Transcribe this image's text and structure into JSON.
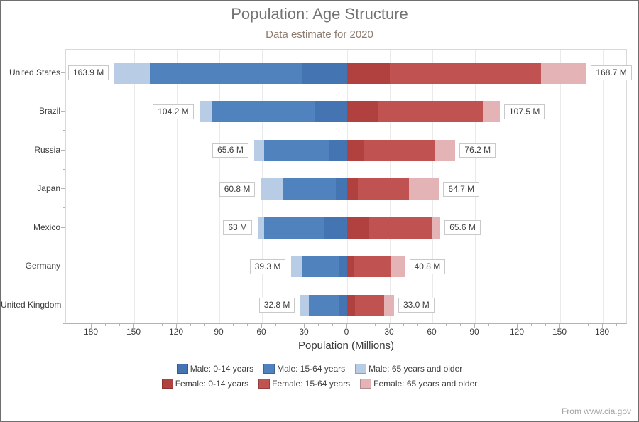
{
  "header": {
    "title": "Population: Age Structure",
    "subtitle": "Data estimate for 2020"
  },
  "footer": {
    "attribution": "From www.cia.gov"
  },
  "chart_data": {
    "type": "bar",
    "variant": "horizontal-diverging-stacked",
    "title": "Population: Age Structure",
    "subtitle": "Data estimate for 2020",
    "xlabel": "Population (Millions)",
    "unit": "Millions",
    "grid": true,
    "legend_position": "bottom",
    "x_tick_labels": [
      "180",
      "150",
      "120",
      "90",
      "60",
      "30",
      "0",
      "30",
      "60",
      "90",
      "120",
      "150",
      "180"
    ],
    "x_major_step": 30,
    "x_minor_step": 10,
    "x_range_abs": 197,
    "categories": [
      "United States",
      "Brazil",
      "Russia",
      "Japan",
      "Mexico",
      "Germany",
      "United Kingdom"
    ],
    "series": [
      {
        "name": "Male: 0-14 years",
        "side": "left",
        "color": "#4474b1",
        "values": [
          31.4,
          22.4,
          12.3,
          8.0,
          15.8,
          5.3,
          6.0
        ]
      },
      {
        "name": "Male: 15-64 years",
        "side": "left",
        "color": "#5083bd",
        "values": [
          107.8,
          73.0,
          46.2,
          36.9,
          42.6,
          26.1,
          20.9
        ]
      },
      {
        "name": "Male: 65 years and older",
        "side": "left",
        "color": "#b8cde5",
        "values": [
          24.7,
          8.8,
          7.1,
          15.9,
          4.6,
          7.9,
          5.9
        ]
      },
      {
        "name": "Female: 0-14 years",
        "side": "right",
        "color": "#b0413e",
        "values": [
          30.0,
          21.6,
          12.0,
          7.6,
          15.5,
          5.0,
          5.7
        ]
      },
      {
        "name": "Female: 15-64 years",
        "side": "right",
        "color": "#c05351",
        "values": [
          106.6,
          74.0,
          50.2,
          35.7,
          44.3,
          25.9,
          20.5
        ]
      },
      {
        "name": "Female: 65 years and older",
        "side": "right",
        "color": "#e3b3b6",
        "values": [
          32.1,
          11.9,
          14.0,
          21.4,
          5.8,
          9.9,
          6.8
        ]
      }
    ],
    "male_totals": [
      163.9,
      104.2,
      65.6,
      60.8,
      63.0,
      39.3,
      32.8
    ],
    "female_totals": [
      168.7,
      107.5,
      76.2,
      64.7,
      65.6,
      40.8,
      33.0
    ],
    "total_labels_left": [
      "163.9 M",
      "104.2 M",
      "65.6 M",
      "60.8 M",
      "63 M",
      "39.3 M",
      "32.8 M"
    ],
    "total_labels_right": [
      "168.7 M",
      "107.5 M",
      "76.2 M",
      "64.7 M",
      "65.6 M",
      "40.8 M",
      "33.0 M"
    ],
    "colors": {
      "grid": "#eaeaea",
      "axis": "#b3b3b3",
      "text": "#3c3c3c",
      "title": "#737373",
      "subtitle": "#8d7c70"
    }
  }
}
